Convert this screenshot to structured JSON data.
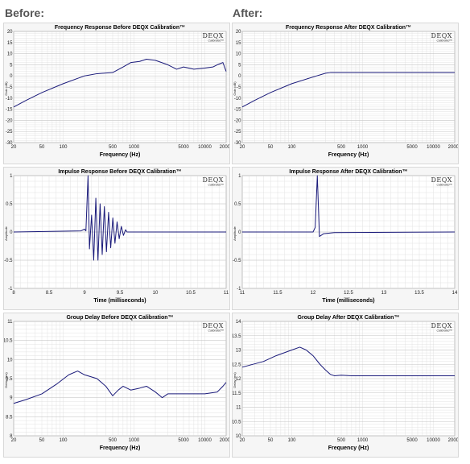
{
  "headers": {
    "before": "Before:",
    "after": "After:"
  },
  "logo": {
    "main": "DEQX",
    "sub": "Calibrated™"
  },
  "colors": {
    "line": "#1a1a7a",
    "grid": "#dcdcdc",
    "plot_bg": "#ffffff",
    "panel_bg": "#f6f6f6"
  },
  "chart_data": [
    {
      "id": "fr_before",
      "type": "line",
      "xscale": "log",
      "title": "Frequency Response Before DEQX Calibration™",
      "xlabel": "Frequency (Hz)",
      "ylabel": "Gain (dB)",
      "xlim": [
        20,
        20000
      ],
      "ylim": [
        -30,
        20
      ],
      "xticks": [
        20,
        50,
        100,
        500,
        1000,
        5000,
        10000,
        20000
      ],
      "xtick_labels": [
        "20",
        "50",
        "100",
        "500",
        "1000",
        "5000",
        "10000",
        "20000"
      ],
      "yticks": [
        -30,
        -25,
        -20,
        -15,
        -10,
        -5,
        0,
        5,
        10,
        15,
        20
      ],
      "ytick_labels": [
        "-30",
        "-25",
        "-20",
        "-15",
        "-10",
        "-5",
        "0",
        "5",
        "10",
        "15",
        "20"
      ],
      "x": [
        20,
        30,
        50,
        100,
        200,
        300,
        500,
        700,
        900,
        1200,
        1500,
        2000,
        3000,
        4000,
        5000,
        7000,
        10000,
        13000,
        15000,
        18000,
        20000
      ],
      "y": [
        -14,
        -11,
        -7.5,
        -3.5,
        0,
        1,
        1.5,
        4,
        6,
        6.5,
        7.5,
        7,
        5,
        3,
        4,
        3,
        3.5,
        4,
        5,
        6,
        2
      ]
    },
    {
      "id": "fr_after",
      "type": "line",
      "xscale": "log",
      "title": "Frequency Response After DEQX Calibration™",
      "xlabel": "Frequency (Hz)",
      "ylabel": "Gain (dB)",
      "xlim": [
        20,
        20000
      ],
      "ylim": [
        -30,
        20
      ],
      "xticks": [
        20,
        50,
        100,
        500,
        1000,
        5000,
        10000,
        20000
      ],
      "xtick_labels": [
        "20",
        "50",
        "100",
        "500",
        "1000",
        "5000",
        "10000",
        "20000"
      ],
      "yticks": [
        -30,
        -25,
        -20,
        -15,
        -10,
        -5,
        0,
        5,
        10,
        15,
        20
      ],
      "ytick_labels": [
        "-30",
        "-25",
        "-20",
        "-15",
        "-10",
        "-5",
        "0",
        "5",
        "10",
        "15",
        "20"
      ],
      "x": [
        20,
        30,
        50,
        100,
        200,
        300,
        350,
        400,
        500,
        1000,
        5000,
        20000
      ],
      "y": [
        -14,
        -11,
        -7.5,
        -3.5,
        -0.5,
        1.2,
        1.5,
        1.5,
        1.5,
        1.5,
        1.5,
        1.5
      ]
    },
    {
      "id": "ir_before",
      "type": "line",
      "xscale": "linear",
      "title": "Impulse Response Before DEQX Calibration™",
      "xlabel": "Time (milliseconds)",
      "ylabel": "Amplitude",
      "xlim": [
        8,
        11
      ],
      "ylim": [
        -1,
        1
      ],
      "xticks": [
        8,
        8.5,
        9,
        9.5,
        10,
        10.5,
        11
      ],
      "xtick_labels": [
        "8",
        "8.5",
        "9",
        "9.5",
        "10",
        "10.5",
        "11"
      ],
      "yticks": [
        -1,
        -0.5,
        0,
        0.5,
        1
      ],
      "ytick_labels": [
        "-1",
        "-0.5",
        "0",
        "0.5",
        "1"
      ],
      "x": [
        8,
        8.95,
        9.0,
        9.02,
        9.05,
        9.07,
        9.1,
        9.13,
        9.16,
        9.19,
        9.22,
        9.25,
        9.28,
        9.31,
        9.34,
        9.37,
        9.4,
        9.43,
        9.46,
        9.49,
        9.52,
        9.55,
        9.58,
        9.6,
        11
      ],
      "y": [
        0,
        0.02,
        0.05,
        0.02,
        1.0,
        -0.3,
        0.3,
        -0.5,
        0.6,
        -0.5,
        0.5,
        -0.4,
        0.45,
        -0.35,
        0.35,
        -0.28,
        0.25,
        -0.2,
        0.18,
        -0.12,
        0.1,
        -0.06,
        0.04,
        0,
        0
      ]
    },
    {
      "id": "ir_after",
      "type": "line",
      "xscale": "linear",
      "title": "Impulse Response After DEQX Calibration™",
      "xlabel": "Time (milliseconds)",
      "ylabel": "Amplitude",
      "xlim": [
        11,
        14
      ],
      "ylim": [
        -1,
        1
      ],
      "xticks": [
        11,
        11.5,
        12,
        12.5,
        13,
        13.5,
        14
      ],
      "xtick_labels": [
        "11",
        "11.5",
        "12",
        "12.5",
        "13",
        "13.5",
        "14"
      ],
      "yticks": [
        -1,
        -0.5,
        0,
        0.5,
        1
      ],
      "ytick_labels": [
        "-1",
        "-0.5",
        "0",
        "0.5",
        "1"
      ],
      "x": [
        11,
        12.0,
        12.03,
        12.06,
        12.09,
        12.15,
        12.3,
        14
      ],
      "y": [
        0,
        0,
        0.08,
        1.0,
        -0.08,
        -0.03,
        -0.01,
        0
      ]
    },
    {
      "id": "gd_before",
      "type": "line",
      "xscale": "log",
      "title": "Group Delay Before DEQX Calibration™",
      "xlabel": "Frequency (Hz)",
      "ylabel": "Delay (ms)",
      "xlim": [
        20,
        20000
      ],
      "ylim": [
        8,
        11
      ],
      "xticks": [
        20,
        50,
        100,
        500,
        1000,
        5000,
        10000,
        20000
      ],
      "xtick_labels": [
        "20",
        "50",
        "100",
        "500",
        "1000",
        "5000",
        "10000",
        "20000"
      ],
      "yticks": [
        8,
        8.5,
        9,
        9.5,
        10,
        10.5,
        11
      ],
      "ytick_labels": [
        "8",
        "8.5",
        "9",
        "9.5",
        "10",
        "10.5",
        "11"
      ],
      "x": [
        20,
        30,
        50,
        80,
        120,
        160,
        200,
        300,
        400,
        500,
        600,
        700,
        900,
        1200,
        1500,
        2000,
        2500,
        3000,
        5000,
        10000,
        15000,
        18000,
        20000
      ],
      "y": [
        8.85,
        8.95,
        9.1,
        9.35,
        9.6,
        9.7,
        9.6,
        9.5,
        9.3,
        9.05,
        9.2,
        9.3,
        9.2,
        9.25,
        9.3,
        9.15,
        9.0,
        9.1,
        9.1,
        9.1,
        9.15,
        9.3,
        9.4
      ]
    },
    {
      "id": "gd_after",
      "type": "line",
      "xscale": "log",
      "title": "Group Delay After DEQX Calibration™",
      "xlabel": "Frequency (Hz)",
      "ylabel": "Delay (ms)",
      "xlim": [
        20,
        20000
      ],
      "ylim": [
        10,
        14
      ],
      "xticks": [
        20,
        50,
        100,
        500,
        1000,
        5000,
        10000,
        20000
      ],
      "xtick_labels": [
        "20",
        "50",
        "100",
        "500",
        "1000",
        "5000",
        "10000",
        "20000"
      ],
      "yticks": [
        10,
        10.5,
        11,
        11.5,
        12,
        12.5,
        13,
        13.5,
        14
      ],
      "ytick_labels": [
        "10",
        "10.5",
        "11",
        "11.5",
        "12",
        "12.5",
        "13",
        "13.5",
        "14"
      ],
      "x": [
        20,
        40,
        60,
        100,
        130,
        160,
        200,
        250,
        300,
        350,
        400,
        500,
        700,
        1000,
        5000,
        20000
      ],
      "y": [
        12.4,
        12.6,
        12.8,
        13.0,
        13.1,
        13.0,
        12.8,
        12.5,
        12.3,
        12.15,
        12.1,
        12.12,
        12.1,
        12.1,
        12.1,
        12.1
      ]
    }
  ]
}
